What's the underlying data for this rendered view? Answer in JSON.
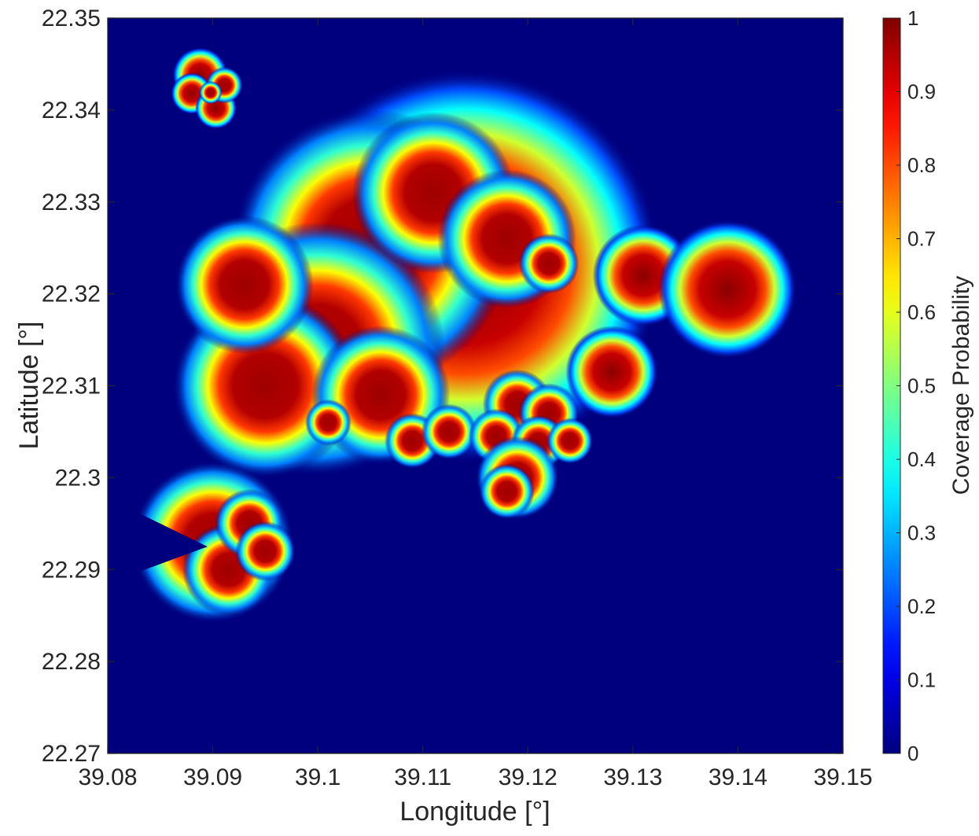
{
  "chart_data": {
    "type": "heatmap",
    "title": "",
    "xlabel": "Longitude [°]",
    "ylabel": "Latitude [°]",
    "xlim": [
      39.08,
      39.15
    ],
    "ylim": [
      22.27,
      22.35
    ],
    "xticks": [
      "39.08",
      "39.09",
      "39.1",
      "39.11",
      "39.12",
      "39.13",
      "39.14",
      "39.15"
    ],
    "yticks": [
      "22.27",
      "22.28",
      "22.29",
      "22.3",
      "22.31",
      "22.32",
      "22.33",
      "22.34",
      "22.35"
    ],
    "colormap": "jet",
    "background_value": 0,
    "colorbar": {
      "label": "Coverage Probability",
      "range": [
        0,
        1
      ],
      "ticks": [
        "0",
        "0.1",
        "0.2",
        "0.3",
        "0.4",
        "0.5",
        "0.6",
        "0.7",
        "0.8",
        "0.9",
        "1"
      ]
    },
    "hotspots": [
      {
        "lon": 39.0888,
        "lat": 22.3438,
        "radius_deg": 0.0012,
        "peak": 0.97
      },
      {
        "lon": 39.088,
        "lat": 22.3418,
        "radius_deg": 0.0009,
        "peak": 0.97
      },
      {
        "lon": 39.0903,
        "lat": 22.3402,
        "radius_deg": 0.0009,
        "peak": 0.97
      },
      {
        "lon": 39.0911,
        "lat": 22.3427,
        "radius_deg": 0.0008,
        "peak": 0.95
      },
      {
        "lon": 39.0898,
        "lat": 22.3419,
        "radius_deg": 0.0005,
        "peak": 0.9
      },
      {
        "lon": 39.114,
        "lat": 22.323,
        "radius_deg": 0.0085,
        "peak": 0.97
      },
      {
        "lon": 39.105,
        "lat": 22.325,
        "radius_deg": 0.006,
        "peak": 0.96
      },
      {
        "lon": 39.1,
        "lat": 22.314,
        "radius_deg": 0.0055,
        "peak": 0.95
      },
      {
        "lon": 39.095,
        "lat": 22.31,
        "radius_deg": 0.004,
        "peak": 0.92
      },
      {
        "lon": 39.093,
        "lat": 22.321,
        "radius_deg": 0.003,
        "peak": 0.9
      },
      {
        "lon": 39.106,
        "lat": 22.309,
        "radius_deg": 0.003,
        "peak": 0.85
      },
      {
        "lon": 39.111,
        "lat": 22.331,
        "radius_deg": 0.0035,
        "peak": 0.95
      },
      {
        "lon": 39.118,
        "lat": 22.326,
        "radius_deg": 0.003,
        "peak": 0.93
      },
      {
        "lon": 39.109,
        "lat": 22.304,
        "radius_deg": 0.0012,
        "peak": 0.95
      },
      {
        "lon": 39.1125,
        "lat": 22.305,
        "radius_deg": 0.0012,
        "peak": 0.93
      },
      {
        "lon": 39.101,
        "lat": 22.306,
        "radius_deg": 0.001,
        "peak": 0.9
      },
      {
        "lon": 39.122,
        "lat": 22.3233,
        "radius_deg": 0.0013,
        "peak": 0.93
      },
      {
        "lon": 39.131,
        "lat": 22.322,
        "radius_deg": 0.0022,
        "peak": 0.97
      },
      {
        "lon": 39.139,
        "lat": 22.3205,
        "radius_deg": 0.003,
        "peak": 0.99
      },
      {
        "lon": 39.128,
        "lat": 22.3115,
        "radius_deg": 0.002,
        "peak": 0.99
      },
      {
        "lon": 39.119,
        "lat": 22.308,
        "radius_deg": 0.0015,
        "peak": 0.93
      },
      {
        "lon": 39.122,
        "lat": 22.307,
        "radius_deg": 0.0013,
        "peak": 0.92
      },
      {
        "lon": 39.117,
        "lat": 22.3045,
        "radius_deg": 0.0012,
        "peak": 0.9
      },
      {
        "lon": 39.121,
        "lat": 22.3038,
        "radius_deg": 0.0012,
        "peak": 0.95
      },
      {
        "lon": 39.124,
        "lat": 22.304,
        "radius_deg": 0.001,
        "peak": 0.93
      },
      {
        "lon": 39.119,
        "lat": 22.3,
        "radius_deg": 0.0018,
        "peak": 0.92
      },
      {
        "lon": 39.118,
        "lat": 22.2985,
        "radius_deg": 0.0012,
        "peak": 0.88
      },
      {
        "lon": 39.09,
        "lat": 22.293,
        "radius_deg": 0.0035,
        "peak": 0.96
      },
      {
        "lon": 39.0915,
        "lat": 22.29,
        "radius_deg": 0.002,
        "peak": 0.95
      },
      {
        "lon": 39.0935,
        "lat": 22.295,
        "radius_deg": 0.0015,
        "peak": 0.85
      },
      {
        "lon": 39.095,
        "lat": 22.292,
        "radius_deg": 0.0013,
        "peak": 0.8
      }
    ]
  }
}
